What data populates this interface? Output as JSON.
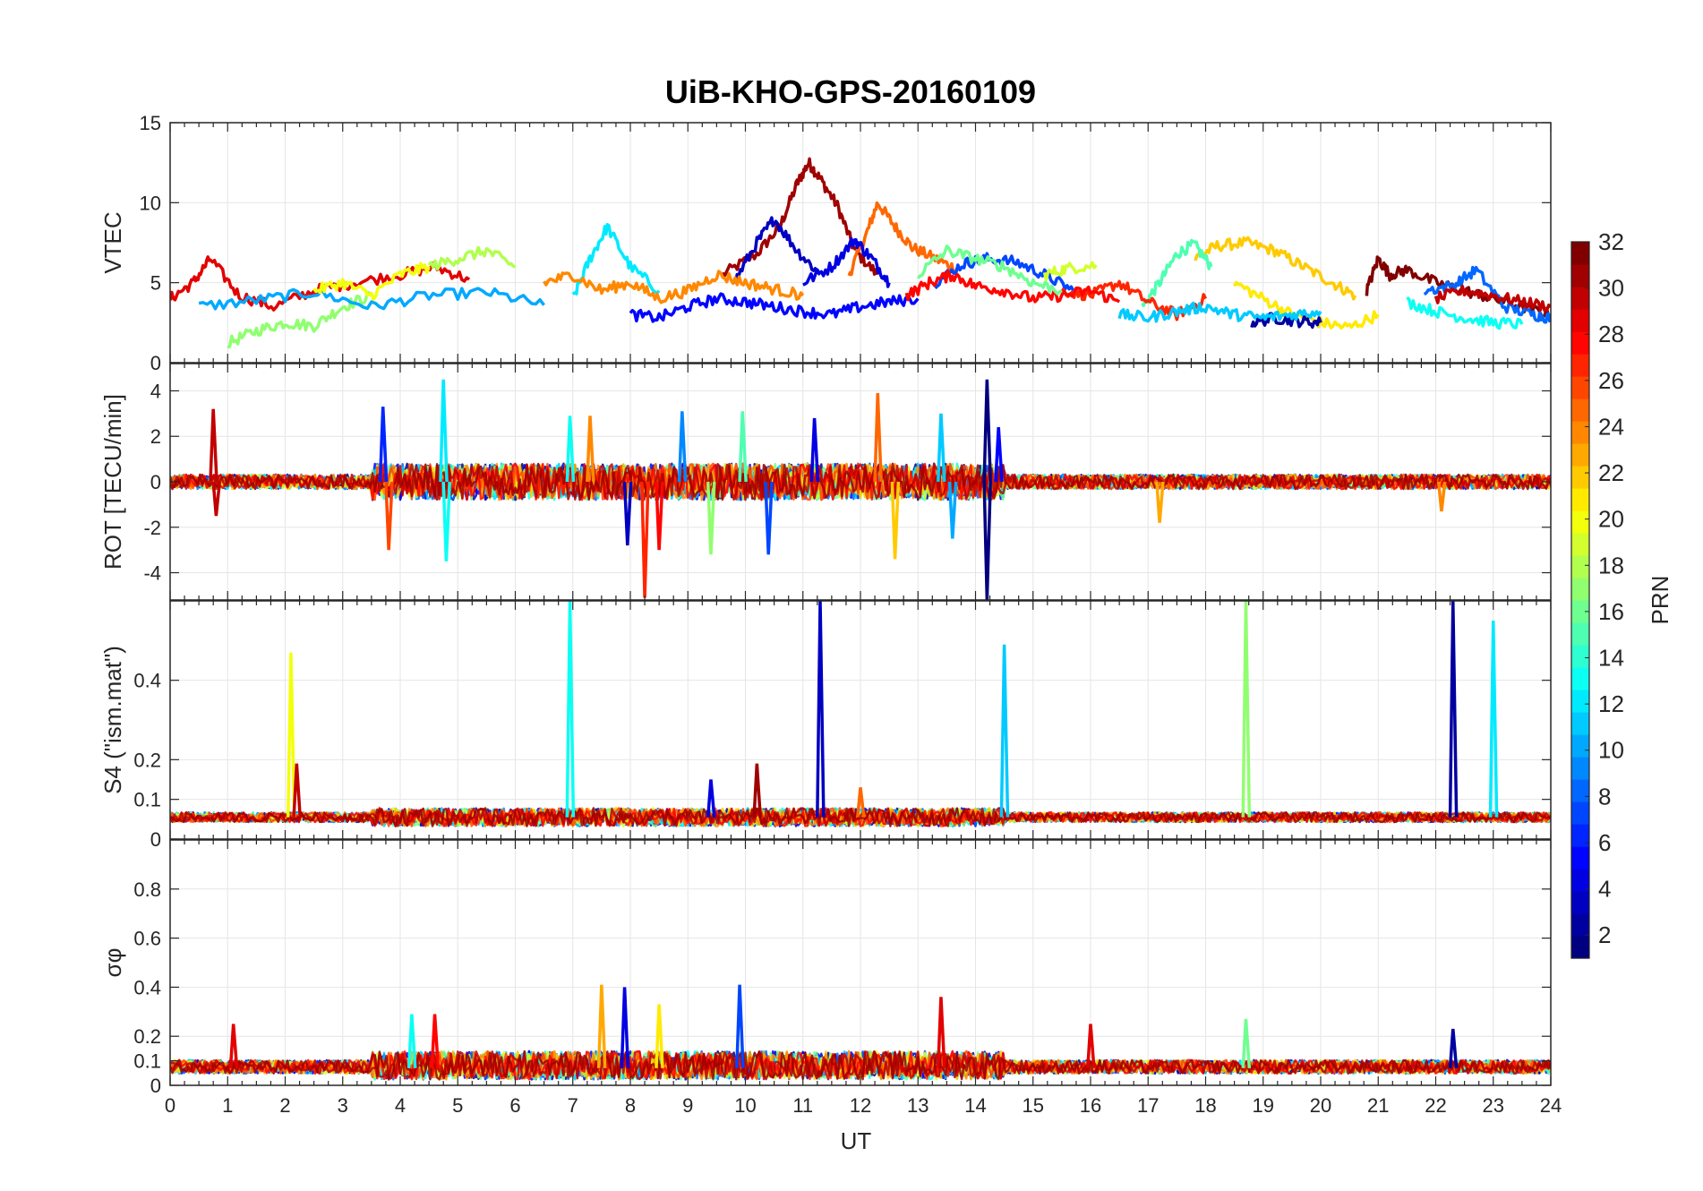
{
  "chart_data": {
    "title": "UiB-KHO-GPS-20160109",
    "xlabel": "UT",
    "xlim": [
      0,
      24
    ],
    "xticks": [
      "0",
      "1",
      "2",
      "3",
      "4",
      "5",
      "6",
      "7",
      "8",
      "9",
      "10",
      "11",
      "12",
      "13",
      "14",
      "15",
      "16",
      "17",
      "18",
      "19",
      "20",
      "21",
      "22",
      "23",
      "24"
    ],
    "colormap": "jet",
    "colorbar": {
      "label": "PRN",
      "range": [
        1,
        32
      ],
      "ticks": [
        "2",
        "4",
        "6",
        "8",
        "10",
        "12",
        "14",
        "16",
        "18",
        "20",
        "22",
        "24",
        "26",
        "28",
        "30",
        "32"
      ],
      "ticks_num": [
        2,
        4,
        6,
        8,
        10,
        12,
        14,
        16,
        18,
        20,
        22,
        24,
        26,
        28,
        30,
        32
      ]
    },
    "grid": true,
    "panels": [
      {
        "type": "line",
        "ylabel": "VTEC",
        "ylim": [
          0,
          15
        ],
        "yticks": [
          "0",
          "5",
          "10",
          "15"
        ],
        "yticks_num": [
          0,
          5,
          10,
          15
        ],
        "series": [
          {
            "prn": 31,
            "x": [
              9.6,
              10.2,
              10.6,
              10.9,
              11.1,
              11.3,
              11.6,
              11.9,
              12.3
            ],
            "y": [
              5.5,
              6.8,
              8.5,
              11.2,
              12.5,
              11.5,
              9.8,
              7.0,
              5.5
            ]
          },
          {
            "prn": 25,
            "x": [
              11.8,
              12.1,
              12.3,
              12.6,
              12.9,
              13.3,
              13.7
            ],
            "y": [
              5.5,
              8.0,
              10.0,
              8.5,
              7.2,
              6.5,
              5.8
            ]
          },
          {
            "prn": 22,
            "x": [
              17.8,
              18.2,
              18.7,
              19.2,
              19.7,
              20.2,
              20.6
            ],
            "y": [
              6.5,
              7.3,
              7.5,
              7.0,
              6.0,
              5.0,
              4.2
            ]
          },
          {
            "prn": 15,
            "x": [
              16.9,
              17.2,
              17.5,
              17.8,
              18.1
            ],
            "y": [
              3.5,
              5.0,
              6.8,
              7.4,
              6.0
            ]
          },
          {
            "prn": 17,
            "x": [
              1.0,
              1.5,
              2.0,
              2.5,
              3.0,
              3.5
            ],
            "y": [
              1.2,
              2.0,
              2.5,
              2.3,
              3.5,
              4.2
            ]
          },
          {
            "prn": 29,
            "x": [
              0,
              0.4,
              0.7,
              1.2,
              1.8,
              2.5,
              3.2,
              4.0,
              4.6,
              5.2
            ],
            "y": [
              4.0,
              5.0,
              6.5,
              4.2,
              3.5,
              4.5,
              5.0,
              5.5,
              6.0,
              5.2
            ]
          },
          {
            "prn": 10,
            "x": [
              0.5,
              1.5,
              2.5,
              3.5,
              4.5,
              5.5,
              6.5
            ],
            "y": [
              3.5,
              3.9,
              4.4,
              3.5,
              4.2,
              4.4,
              3.6
            ]
          },
          {
            "prn": 12,
            "x": [
              7.0,
              7.3,
              7.6,
              8.0,
              8.5
            ],
            "y": [
              4.0,
              6.5,
              8.5,
              6.0,
              4.5
            ]
          },
          {
            "prn": 3,
            "x": [
              9.8,
              10.2,
              10.5,
              10.9,
              11.3
            ],
            "y": [
              5.0,
              7.5,
              9.0,
              7.0,
              5.5
            ]
          },
          {
            "prn": 4,
            "x": [
              11.0,
              11.5,
              11.9,
              12.2,
              12.5
            ],
            "y": [
              5.0,
              6.0,
              7.7,
              6.5,
              5.0
            ]
          },
          {
            "prn": 7,
            "x": [
              13.3,
              13.8,
              14.2,
              14.7,
              15.2,
              15.7
            ],
            "y": [
              5.0,
              6.2,
              6.5,
              6.3,
              5.5,
              4.5
            ]
          },
          {
            "prn": 19,
            "x": [
              15.2,
              15.6,
              16.1
            ],
            "y": [
              5.5,
              5.9,
              6.1
            ]
          },
          {
            "prn": 27,
            "x": [
              15.5,
              16.0,
              16.5,
              17.0,
              17.5,
              18.0
            ],
            "y": [
              4.5,
              4.2,
              5.0,
              3.8,
              3.0,
              4.0
            ]
          },
          {
            "prn": 21,
            "x": [
              18.5,
              19.0,
              19.5,
              20.0,
              20.5,
              21.0
            ],
            "y": [
              5.0,
              4.0,
              3.0,
              2.5,
              2.2,
              3.0
            ]
          },
          {
            "prn": 32,
            "x": [
              20.8,
              21.0,
              21.2,
              21.5,
              22.0,
              22.5,
              23.0,
              23.5,
              24.0
            ],
            "y": [
              4.5,
              6.5,
              5.5,
              5.8,
              5.0,
              4.5,
              4.0,
              3.5,
              3.0
            ]
          },
          {
            "prn": 2,
            "x": [
              18.8,
              19.2,
              19.6,
              20.0
            ],
            "y": [
              2.5,
              2.8,
              2.6,
              2.5
            ]
          },
          {
            "prn": 8,
            "x": [
              21.8,
              22.3,
              22.7,
              23.2,
              23.7,
              24.0
            ],
            "y": [
              4.5,
              4.8,
              5.8,
              3.5,
              3.0,
              2.8
            ]
          },
          {
            "prn": 13,
            "x": [
              21.5,
              22.0,
              22.5,
              23.0,
              23.5
            ],
            "y": [
              3.8,
              3.2,
              2.8,
              2.5,
              2.4
            ]
          },
          {
            "prn": 30,
            "x": [
              22.0,
              22.5,
              23.0,
              23.5,
              24.0
            ],
            "y": [
              4.0,
              4.5,
              4.2,
              3.8,
              3.5
            ]
          },
          {
            "prn": 20,
            "x": [
              2.5,
              3.0,
              3.5,
              4.0,
              4.5
            ],
            "y": [
              4.5,
              5.0,
              4.2,
              5.5,
              6.0
            ]
          },
          {
            "prn": 18,
            "x": [
              4.5,
              5.0,
              5.5,
              6.0
            ],
            "y": [
              6.0,
              6.5,
              7.0,
              6.0
            ]
          },
          {
            "prn": 24,
            "x": [
              6.5,
              7.0,
              7.5,
              8.0,
              8.5,
              9.0,
              9.5,
              10.0,
              10.5,
              11.0
            ],
            "y": [
              5.0,
              5.5,
              4.5,
              5.0,
              4.0,
              4.5,
              5.5,
              5.0,
              4.6,
              4.2
            ]
          },
          {
            "prn": 5,
            "x": [
              8.0,
              8.5,
              9.0,
              9.5,
              10.0,
              10.5,
              11.0,
              11.5,
              12.0,
              12.5,
              13.0
            ],
            "y": [
              3.0,
              2.8,
              3.5,
              4.0,
              3.8,
              3.5,
              3.2,
              3.0,
              3.5,
              3.8,
              4.0
            ]
          },
          {
            "prn": 28,
            "x": [
              12.8,
              13.2,
              13.6,
              14.0,
              14.5,
              15.0,
              15.5,
              16.0,
              16.5
            ],
            "y": [
              4.2,
              5.0,
              5.5,
              4.8,
              4.5,
              4.0,
              4.2,
              4.5,
              3.8
            ]
          },
          {
            "prn": 16,
            "x": [
              13.0,
              13.5,
              14.0,
              14.5,
              15.0,
              15.5
            ],
            "y": [
              5.5,
              7.0,
              6.5,
              6.0,
              5.0,
              4.5
            ]
          },
          {
            "prn": 11,
            "x": [
              16.5,
              17.0,
              17.5,
              18.0,
              18.5,
              19.0,
              19.5,
              20.0
            ],
            "y": [
              3.0,
              2.8,
              3.2,
              3.5,
              3.0,
              2.8,
              3.0,
              3.2
            ]
          }
        ]
      },
      {
        "type": "line",
        "ylabel": "ROT [TECU/min]",
        "ylim": [
          -5.2,
          5.2
        ],
        "yticks": [
          "-4",
          "-2",
          "0",
          "2",
          "4"
        ],
        "yticks_num": [
          -4,
          -2,
          0,
          2,
          4
        ],
        "spikes": [
          {
            "prn": 30,
            "x": 0.75,
            "y": 3.2
          },
          {
            "prn": 30,
            "x": 0.8,
            "y": -1.5
          },
          {
            "prn": 26,
            "x": 3.8,
            "y": -3.0
          },
          {
            "prn": 6,
            "x": 3.7,
            "y": 3.3
          },
          {
            "prn": 12,
            "x": 4.75,
            "y": 4.5
          },
          {
            "prn": 13,
            "x": 4.8,
            "y": -3.5
          },
          {
            "prn": 13,
            "x": 6.95,
            "y": 2.9
          },
          {
            "prn": 24,
            "x": 7.3,
            "y": 2.9
          },
          {
            "prn": 27,
            "x": 8.25,
            "y": -5.1
          },
          {
            "prn": 3,
            "x": 7.95,
            "y": -2.8
          },
          {
            "prn": 28,
            "x": 8.5,
            "y": -3.0
          },
          {
            "prn": 9,
            "x": 8.9,
            "y": 3.1
          },
          {
            "prn": 17,
            "x": 9.4,
            "y": -3.2
          },
          {
            "prn": 15,
            "x": 9.95,
            "y": 3.1
          },
          {
            "prn": 7,
            "x": 10.4,
            "y": -3.2
          },
          {
            "prn": 4,
            "x": 11.2,
            "y": 2.8
          },
          {
            "prn": 25,
            "x": 12.3,
            "y": 3.9
          },
          {
            "prn": 22,
            "x": 12.6,
            "y": -3.4
          },
          {
            "prn": 11,
            "x": 13.4,
            "y": 3.0
          },
          {
            "prn": 10,
            "x": 13.6,
            "y": -2.5
          },
          {
            "prn": 1,
            "x": 14.2,
            "y": 4.5
          },
          {
            "prn": 1,
            "x": 14.2,
            "y": -5.2
          },
          {
            "prn": 5,
            "x": 14.4,
            "y": 2.4
          },
          {
            "prn": 23,
            "x": 17.2,
            "y": -1.8
          },
          {
            "prn": 24,
            "x": 22.1,
            "y": -1.3
          }
        ]
      },
      {
        "type": "line",
        "ylabel": "S4 (\"ism.mat\")",
        "ylim": [
          0,
          0.6
        ],
        "yticks": [
          "0",
          "0.1",
          "0.2",
          "0.4"
        ],
        "yticks_num": [
          0,
          0.1,
          0.2,
          0.4
        ],
        "spikes": [
          {
            "prn": 20,
            "x": 2.1,
            "y": 0.47
          },
          {
            "prn": 30,
            "x": 2.2,
            "y": 0.19
          },
          {
            "prn": 13,
            "x": 6.95,
            "y": 0.6
          },
          {
            "prn": 3,
            "x": 11.3,
            "y": 0.6
          },
          {
            "prn": 11,
            "x": 14.5,
            "y": 0.49
          },
          {
            "prn": 17,
            "x": 18.7,
            "y": 0.6
          },
          {
            "prn": 2,
            "x": 22.3,
            "y": 0.6
          },
          {
            "prn": 12,
            "x": 23.0,
            "y": 0.55
          },
          {
            "prn": 31,
            "x": 10.2,
            "y": 0.19
          },
          {
            "prn": 4,
            "x": 9.4,
            "y": 0.15
          },
          {
            "prn": 25,
            "x": 12.0,
            "y": 0.13
          }
        ]
      },
      {
        "type": "line",
        "ylabel": "σφ",
        "ylim": [
          0,
          1
        ],
        "yticks": [
          "0",
          "0.1",
          "0.2",
          "0.4",
          "0.6",
          "0.8"
        ],
        "yticks_num": [
          0,
          0.1,
          0.2,
          0.4,
          0.6,
          0.8
        ],
        "spikes": [
          {
            "prn": 29,
            "x": 1.1,
            "y": 0.25
          },
          {
            "prn": 23,
            "x": 7.5,
            "y": 0.41
          },
          {
            "prn": 4,
            "x": 7.9,
            "y": 0.4
          },
          {
            "prn": 7,
            "x": 9.9,
            "y": 0.41
          },
          {
            "prn": 29,
            "x": 13.4,
            "y": 0.36
          },
          {
            "prn": 29,
            "x": 16.0,
            "y": 0.25
          },
          {
            "prn": 16,
            "x": 18.7,
            "y": 0.27
          },
          {
            "prn": 2,
            "x": 22.3,
            "y": 0.23
          },
          {
            "prn": 28,
            "x": 4.6,
            "y": 0.29
          },
          {
            "prn": 13,
            "x": 4.2,
            "y": 0.29
          },
          {
            "prn": 21,
            "x": 8.5,
            "y": 0.33
          }
        ]
      }
    ]
  }
}
